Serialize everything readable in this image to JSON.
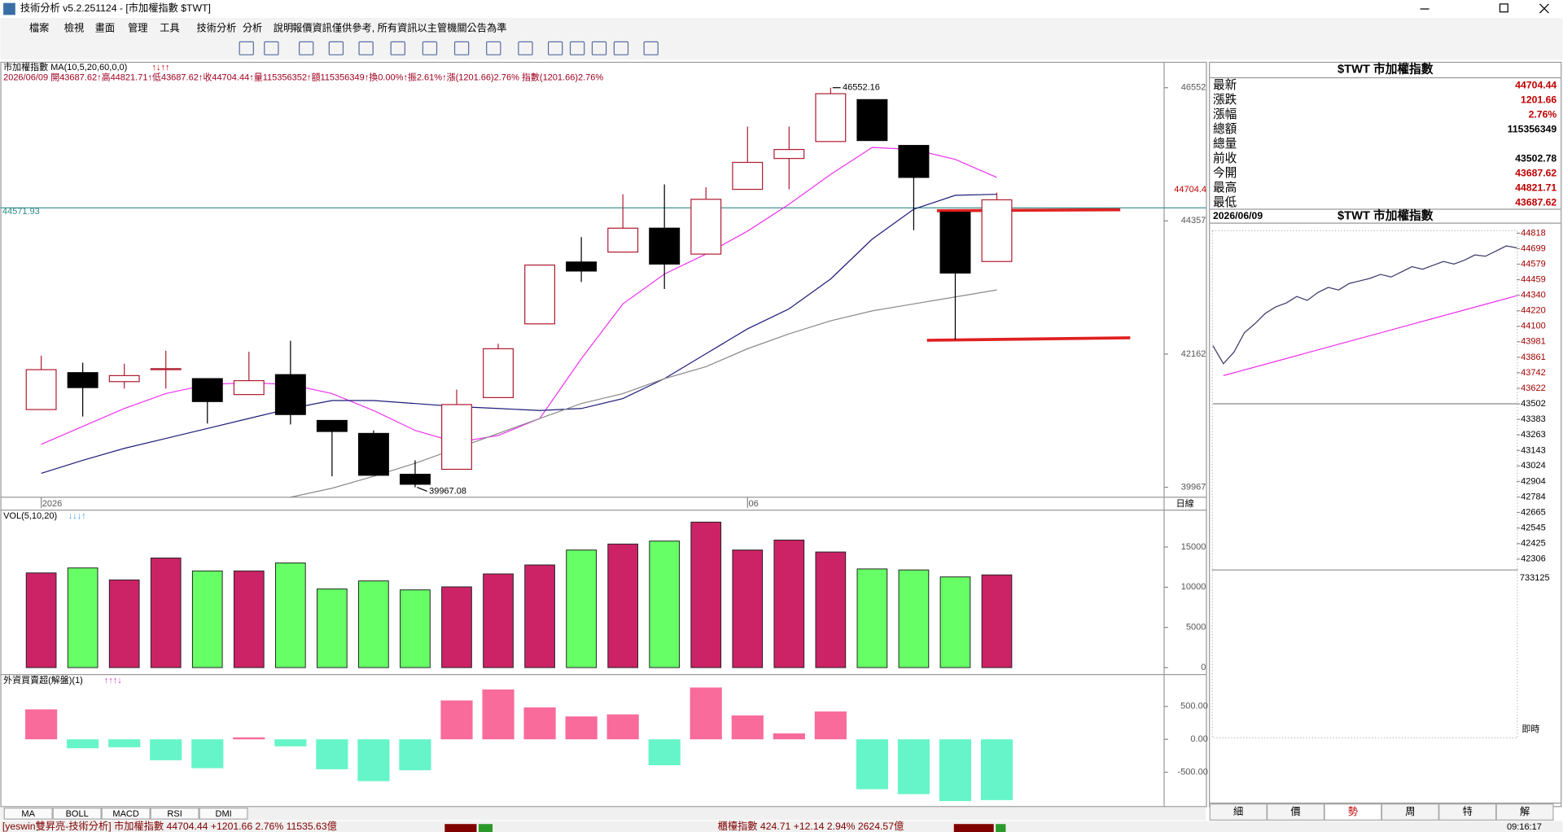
{
  "window": {
    "title": "技術分析 v5.2.251124 - [市加權指數 $TWT]"
  },
  "menu": [
    "檔案",
    "檢視",
    "畫面",
    "管理",
    "工具",
    "技術分析",
    "分析",
    "說明",
    "報價資訊僅供參考, 所有資訊以主管機關公告為準"
  ],
  "quote": {
    "title": "$TWT 市加權指數",
    "rows": [
      {
        "label": "最新",
        "value": "44704.44",
        "color": "#c00000"
      },
      {
        "label": "漲跌",
        "value": "1201.66",
        "color": "#c00000"
      },
      {
        "label": "漲幅",
        "value": "2.76%",
        "color": "#c00000"
      },
      {
        "label": "總額",
        "value": "115356349",
        "color": "#000000"
      },
      {
        "label": "總量"
      },
      {
        "label": "前收",
        "value": "43502.78",
        "color": "#000000"
      },
      {
        "label": "今開",
        "value": "43687.62",
        "color": "#c00000"
      },
      {
        "label": "最高",
        "value": "44821.71",
        "color": "#c00000"
      },
      {
        "label": "最低",
        "value": "43687.62",
        "color": "#c00000"
      }
    ]
  },
  "indicator_tabs": [
    "MA",
    "BOLL",
    "MACD",
    "RSI",
    "DMI"
  ],
  "panel_tabs": [
    "細",
    "價",
    "勢",
    "周",
    "特",
    "解"
  ],
  "status": {
    "left": "[yeswin雙昇亮-技術分析] 市加權指數 44704.44 +1201.66 2.76% 11535.63億",
    "middle": "櫃檯指數 424.71 +12.14 2.94% 2624.57億",
    "time": "09:16:17"
  },
  "chart_data": [
    {
      "type": "candlestick",
      "title": "市加權指數 MA(10,5,20,60,0,0)",
      "title_arrows": "↑↓↑↑",
      "subtitle": "2026/06/09 開43687.62↑高44821.71↑低43687.62↑收44704.44↑量115356352↑額115356349↑換0.00%↑振2.61%↑漲(1201.66)2.76% 指數(1201.66)2.76%",
      "categories": [
        "2026",
        null,
        null,
        null,
        null,
        null,
        null,
        null,
        null,
        null,
        null,
        null,
        null,
        null,
        null,
        null,
        null,
        "06",
        null,
        null,
        null,
        null,
        null,
        null
      ],
      "x_unit": "日線",
      "open": [
        41248,
        41856,
        41708,
        41905,
        41757,
        41495,
        41823,
        41068,
        40854,
        40181,
        40263,
        41445,
        42660,
        43679,
        43843,
        44237,
        43810,
        44877,
        45386,
        45665,
        46355,
        45600,
        44500,
        43687.62
      ],
      "high": [
        42135,
        42020,
        42004,
        42217,
        41757,
        42201,
        42381,
        41068,
        40904,
        40411,
        41577,
        42332,
        43629,
        44089,
        44795,
        44959,
        44910,
        45912,
        45912,
        46552.16,
        46355,
        45600,
        44500,
        44821.71
      ],
      "low": [
        41248,
        41133,
        41593,
        41593,
        41018,
        41495,
        41002,
        40148,
        40165,
        39967.08,
        40263,
        41445,
        42660,
        43350,
        43843,
        43235,
        43810,
        44877,
        44877,
        45665,
        45682,
        44204,
        42398,
        43687.62
      ],
      "close": [
        41905,
        41610,
        41807,
        41922,
        41380,
        41724,
        41166,
        40887,
        40165,
        40017,
        41330,
        42250,
        43629,
        43531,
        44237,
        43646,
        44713,
        45321,
        45534,
        46453,
        45682,
        45074,
        43498,
        44704.44
      ],
      "series": [
        {
          "color": "#ee33ee",
          "values": [
            40674,
            40969,
            41265,
            41511,
            41659,
            41692,
            41659,
            41511,
            41232,
            40904,
            40706,
            40821,
            41101,
            42086,
            42989,
            43481,
            43810,
            44188,
            44631,
            45123,
            45567,
            45534,
            45370,
            45074
          ]
        },
        {
          "color": "#1c1c7a",
          "values": [
            40197,
            40411,
            40608,
            40772,
            40936,
            41101,
            41265,
            41396,
            41396,
            41347,
            41298,
            41265,
            41232,
            41265,
            41429,
            41757,
            42168,
            42578,
            42907,
            43399,
            44056,
            44549,
            44779,
            44795
          ]
        },
        {
          "color": "#8a8a8a",
          "values": [
            null,
            null,
            null,
            null,
            null,
            null,
            39803,
            39951,
            40148,
            40362,
            40608,
            40854,
            41101,
            41347,
            41511,
            41757,
            41954,
            42250,
            42496,
            42710,
            42874,
            42989,
            43104,
            43219
          ]
        }
      ],
      "up_color": "#b01e34",
      "down_color": "#000000",
      "annotations": [
        "46552.16",
        "39967.08"
      ],
      "ref_line": {
        "value": 44571.93,
        "label": "44571.93",
        "color": "#2e8b8b"
      },
      "last_tag": {
        "value": 44704.4,
        "label": "44704.4",
        "color": "#c00000"
      },
      "ylim": [
        39836,
        46930
      ],
      "yticks": [
        46552,
        44357,
        42162,
        39967
      ]
    },
    {
      "type": "bar",
      "title": "VOL(5,10,20)",
      "title_arrows": "↓↓↓↑",
      "values": [
        11780,
        12400,
        10912,
        13640,
        12028,
        12028,
        13020,
        9796,
        10788,
        9672,
        10044,
        11656,
        12772,
        14632,
        15376,
        15748,
        18104,
        14632,
        15872,
        14384,
        12276,
        12152,
        11284,
        11536
      ],
      "up_color": "#cc2266",
      "down_color": "#66ff66",
      "ylim": [
        0,
        18600
      ],
      "yticks": [
        15000,
        10000,
        5000,
        0
      ]
    },
    {
      "type": "bar",
      "title": "外資買賣超(解盤)(1)",
      "title_arrows": "↑↑↑↓",
      "values": [
        455,
        -136,
        -121,
        -318,
        -439,
        30,
        -106,
        -455,
        -636,
        -470,
        591,
        758,
        485,
        348,
        379,
        -394,
        788,
        364,
        91,
        424,
        -758,
        -833,
        -939,
        -924
      ],
      "pos_color": "#f86b9a",
      "neg_color": "#66f5c8",
      "ylim": [
        -1030,
        939
      ],
      "yticks": [
        {
          "value": 500,
          "label": "500.00"
        },
        {
          "value": 0,
          "label": "0.00"
        },
        {
          "value": -500,
          "label": "-500.00"
        }
      ]
    },
    {
      "type": "line",
      "title": "$TWT 市加權指數",
      "date": "2026/06/09",
      "categories": [
        null,
        null,
        null,
        null,
        null,
        null,
        null,
        null,
        null,
        null,
        null,
        null,
        null,
        null,
        null,
        null,
        null,
        null,
        null,
        null,
        null,
        null,
        null,
        null,
        null,
        null,
        null,
        null,
        null,
        null
      ],
      "series": [
        {
          "color": "#3a3a6a",
          "values": [
            43950,
            43812,
            43900,
            44050,
            44120,
            44200,
            44250,
            44280,
            44330,
            44300,
            44360,
            44400,
            44380,
            44430,
            44450,
            44470,
            44500,
            44480,
            44520,
            44560,
            44540,
            44570,
            44600,
            44580,
            44610,
            44650,
            44640,
            44680,
            44720,
            44704.44
          ]
        },
        {
          "color": "#ee33ee",
          "values": [
            null,
            43720,
            43742,
            43764,
            43786,
            43808,
            43830,
            43852,
            43874,
            43896,
            43918,
            43940,
            43962,
            43984,
            44006,
            44028,
            44050,
            44072,
            44094,
            44116,
            44138,
            44160,
            44182,
            44204,
            44226,
            44248,
            44270,
            44292,
            44314,
            44336
          ]
        }
      ],
      "ref_value": 43502.78,
      "ylim": [
        42276,
        44841
      ],
      "yticks": [
        44818,
        44699,
        44579,
        44459,
        44340,
        44220,
        44100,
        43981,
        43861,
        43742,
        43622,
        43502,
        43383,
        43263,
        43143,
        43024,
        42904,
        42784,
        42665,
        42545,
        42425,
        42306
      ],
      "volume_max_label": "733125",
      "x_unit": "即時"
    }
  ]
}
